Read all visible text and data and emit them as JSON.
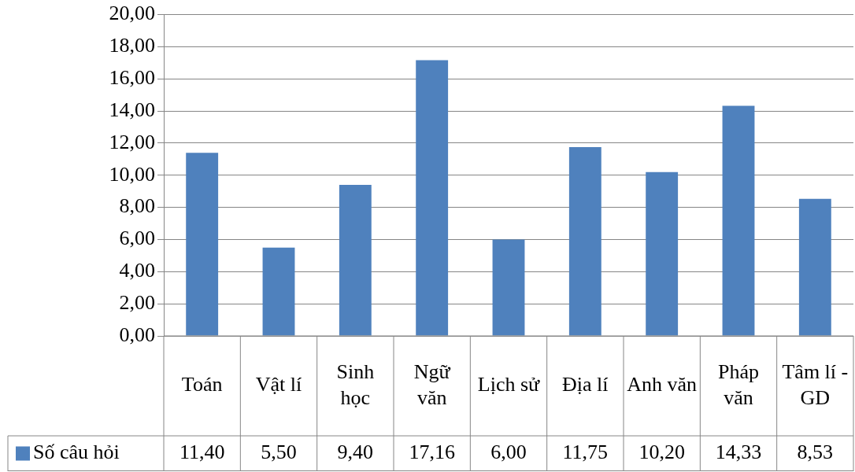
{
  "chart_data": {
    "type": "bar",
    "categories": [
      "Toán",
      "Vật lí",
      "Sinh học",
      "Ngữ văn",
      "Lịch sử",
      "Địa lí",
      "Anh văn",
      "Pháp văn",
      "Tâm lí - GD"
    ],
    "series": [
      {
        "name": "Số câu hỏi",
        "color": "#4f81bd",
        "values": [
          11.4,
          5.5,
          9.4,
          17.16,
          6.0,
          11.75,
          10.2,
          14.33,
          8.53
        ],
        "value_labels": [
          "11,40",
          "5,50",
          "9,40",
          "17,16",
          "6,00",
          "11,75",
          "10,20",
          "14,33",
          "8,53"
        ]
      }
    ],
    "ylim": [
      0,
      20
    ],
    "yticks": [
      {
        "value": 0,
        "label": "0,00"
      },
      {
        "value": 2,
        "label": "2,00"
      },
      {
        "value": 4,
        "label": "4,00"
      },
      {
        "value": 6,
        "label": "6,00"
      },
      {
        "value": 8,
        "label": "8,00"
      },
      {
        "value": 10,
        "label": "10,00"
      },
      {
        "value": 12,
        "label": "12,00"
      },
      {
        "value": 14,
        "label": "14,00"
      },
      {
        "value": 16,
        "label": "16,00"
      },
      {
        "value": 18,
        "label": "18,00"
      },
      {
        "value": 20,
        "label": "20,00"
      }
    ],
    "grid": "y",
    "legend": "bottom left"
  }
}
